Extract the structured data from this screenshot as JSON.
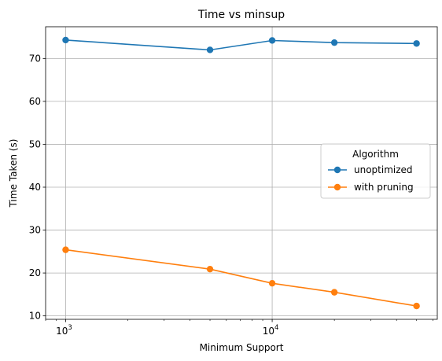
{
  "chart_data": {
    "type": "line",
    "title": "Time vs minsup",
    "xlabel": "Minimum Support",
    "ylabel": "Time Taken (s)",
    "xscale": "log",
    "x": [
      1000,
      5000,
      10000,
      20000,
      50000
    ],
    "series": [
      {
        "name": "unoptimized",
        "color": "#1f77b4",
        "values": [
          74.3,
          72.0,
          74.2,
          73.7,
          73.5
        ]
      },
      {
        "name": "with pruning",
        "color": "#ff7f0e",
        "values": [
          25.4,
          20.9,
          17.6,
          15.5,
          12.3
        ]
      }
    ],
    "xlim": [
      800,
      63000
    ],
    "ylim": [
      9.2,
      77.4
    ],
    "xticks_major": [
      1000,
      10000
    ],
    "xtick_labels": [
      "10",
      "10"
    ],
    "xtick_exponents": [
      "3",
      "4"
    ],
    "yticks": [
      10,
      20,
      30,
      40,
      50,
      60,
      70
    ],
    "ytick_labels": [
      "10",
      "20",
      "30",
      "40",
      "50",
      "60",
      "70"
    ],
    "grid": true,
    "legend": {
      "title": "Algorithm",
      "placement": "center-right"
    }
  }
}
